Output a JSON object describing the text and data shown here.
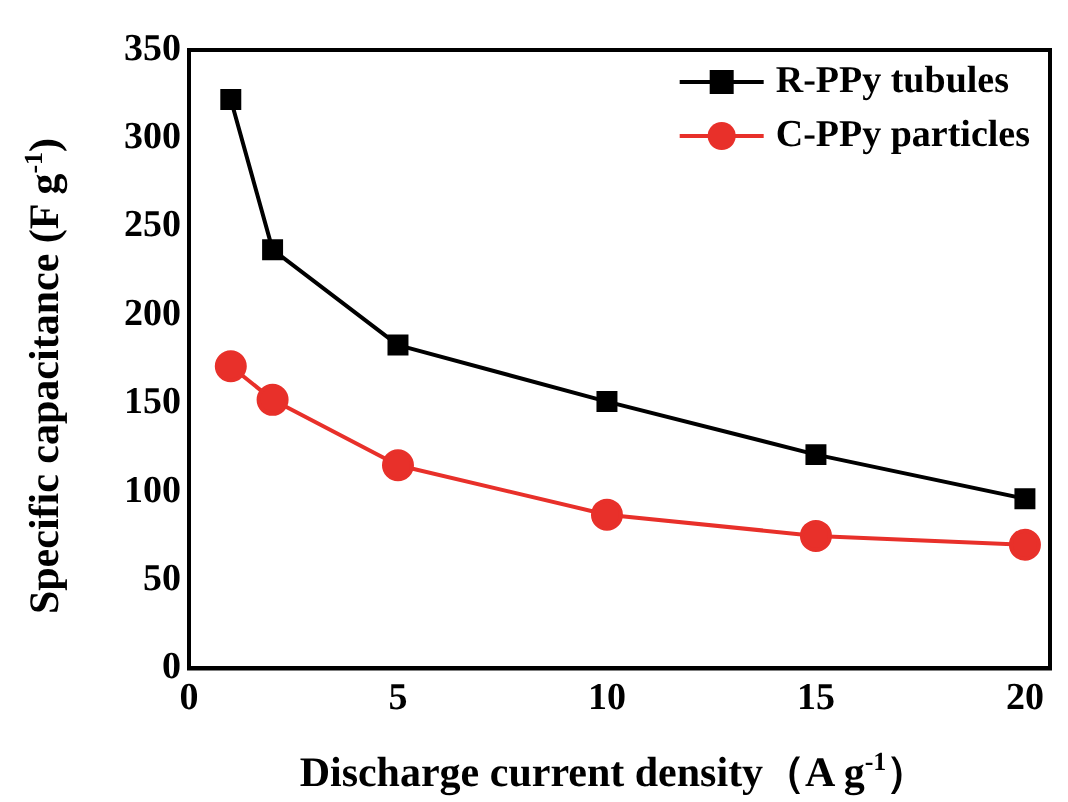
{
  "chart_data": {
    "type": "line",
    "xlabel": "Discharge current density（A g$^{-1}$）",
    "ylabel": "Specific capacitance (F g$^{-1}$)",
    "x": [
      1,
      2,
      5,
      10,
      15,
      20
    ],
    "series": [
      {
        "name": "R-PPy tubules",
        "color": "#000000",
        "values": [
          322,
          237,
          183,
          151,
          121,
          96
        ],
        "marker": "square"
      },
      {
        "name": "C-PPy particles",
        "color": "#e8302a",
        "values": [
          171,
          152,
          115,
          87,
          75,
          70
        ],
        "marker": "circle"
      }
    ],
    "xlim": [
      0,
      20.6
    ],
    "xticks": [
      0,
      5,
      10,
      15,
      20
    ],
    "ylim": [
      0,
      350
    ],
    "yticks": [
      0,
      50,
      100,
      150,
      200,
      250,
      300,
      350
    ],
    "legend": "top right",
    "grid": false
  }
}
